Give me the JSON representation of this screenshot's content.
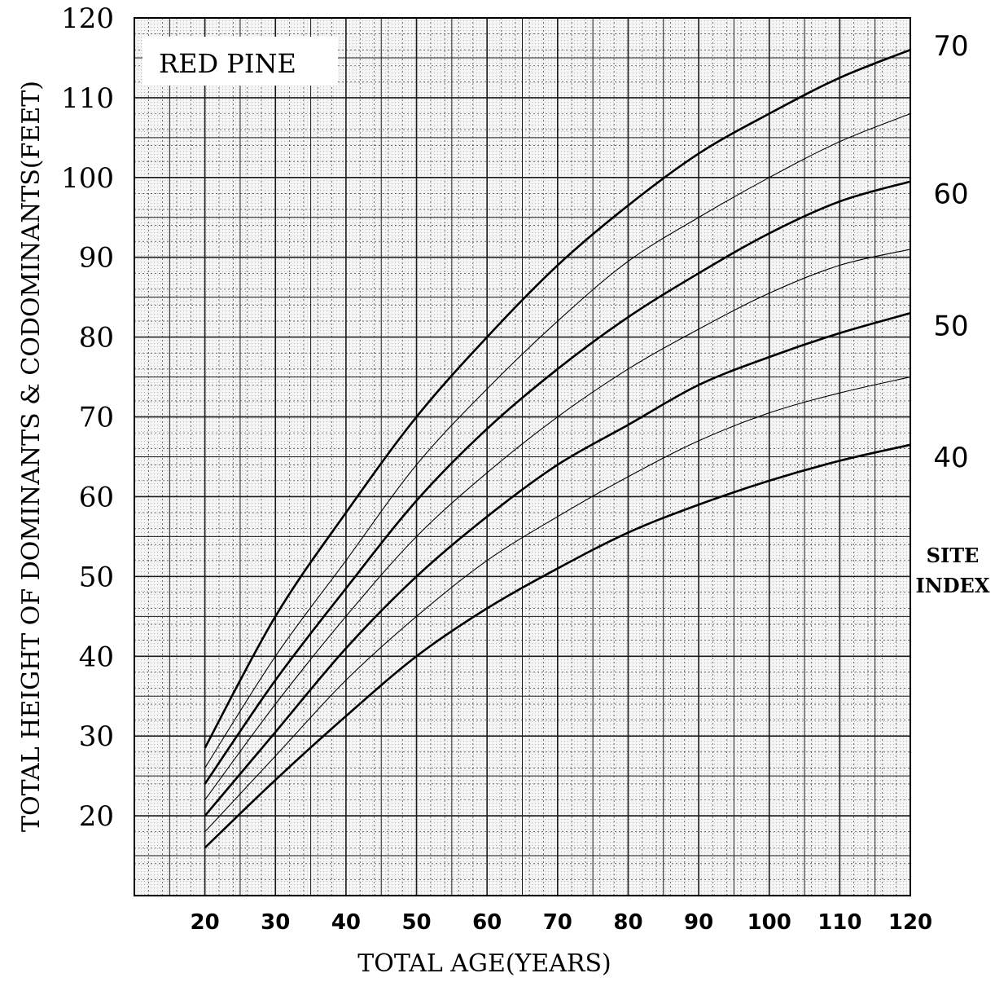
{
  "chart_data": {
    "type": "line",
    "title": "RED PINE",
    "xlabel": "TOTAL AGE(YEARS)",
    "ylabel": "TOTAL HEIGHT OF DOMINANTS & CODOMINANTS(FEET)",
    "xlim": [
      10,
      120
    ],
    "ylim": [
      10,
      120
    ],
    "x_ticks": [
      20,
      30,
      40,
      50,
      60,
      70,
      80,
      90,
      100,
      110,
      120
    ],
    "y_ticks": [
      20,
      30,
      40,
      50,
      60,
      70,
      80,
      90,
      100,
      110,
      120
    ],
    "grid": true,
    "legend": {
      "title_line1": "SITE",
      "title_line2": "INDEX",
      "placement": "right"
    },
    "x": [
      20,
      30,
      40,
      50,
      60,
      70,
      80,
      90,
      100,
      110,
      120
    ],
    "series": [
      {
        "name": "70",
        "label": "70",
        "weight": "heavy",
        "values": [
          28.5,
          45,
          58,
          70,
          80,
          89,
          96.5,
          103,
          108,
          112.5,
          116
        ]
      },
      {
        "name": "",
        "label": "",
        "weight": "light",
        "values": [
          26,
          40,
          52,
          64,
          73.5,
          82,
          89.5,
          95,
          100,
          104.5,
          108
        ]
      },
      {
        "name": "60",
        "label": "60",
        "weight": "heavy",
        "values": [
          24,
          37,
          48.5,
          59.5,
          68.5,
          76,
          82.5,
          88,
          93,
          97,
          99.5
        ]
      },
      {
        "name": "",
        "label": "",
        "weight": "light",
        "values": [
          22,
          34,
          45,
          55,
          63,
          70,
          76,
          81,
          85.5,
          89,
          91
        ]
      },
      {
        "name": "50",
        "label": "50",
        "weight": "heavy",
        "values": [
          20,
          30.5,
          41,
          50,
          57.5,
          64,
          69,
          74,
          77.5,
          80.5,
          83
        ]
      },
      {
        "name": "",
        "label": "",
        "weight": "light",
        "values": [
          18,
          27.5,
          37,
          45,
          52,
          57.5,
          62.5,
          67,
          70.5,
          73,
          75
        ]
      },
      {
        "name": "40",
        "label": "40",
        "weight": "heavy",
        "values": [
          16,
          24.5,
          32.5,
          40,
          46,
          51,
          55.5,
          59,
          62,
          64.5,
          66.5
        ]
      }
    ],
    "colors": {
      "paper": "#ffffff",
      "plot_fill": "#efefef",
      "grid": "#1a1a1a",
      "line": "#000000"
    }
  }
}
